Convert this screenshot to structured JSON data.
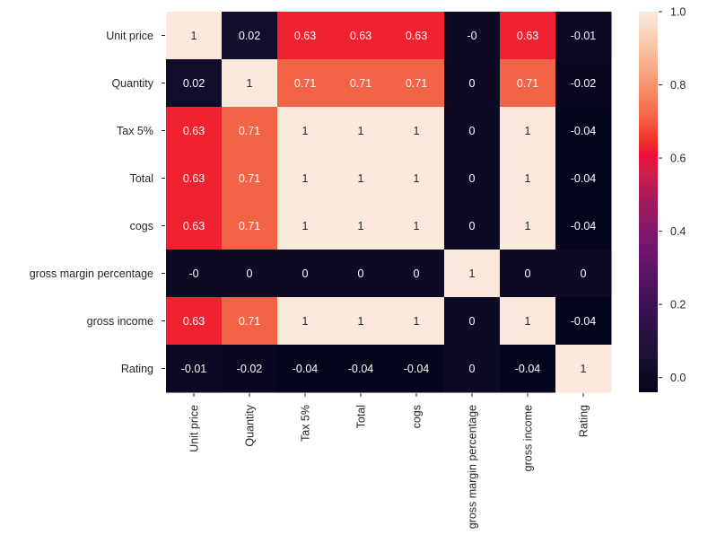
{
  "chart_data": {
    "type": "heatmap",
    "title": "",
    "xlabel": "",
    "ylabel": "",
    "row_labels": [
      "Unit price",
      "Quantity",
      "Tax 5%",
      "Total",
      "cogs",
      "gross margin percentage",
      "gross income",
      "Rating"
    ],
    "col_labels": [
      "Unit price",
      "Quantity",
      "Tax 5%",
      "Total",
      "cogs",
      "gross margin percentage",
      "gross income",
      "Rating"
    ],
    "values": [
      [
        1,
        0.02,
        0.63,
        0.63,
        0.63,
        -0.0,
        0.63,
        -0.01
      ],
      [
        0.02,
        1,
        0.71,
        0.71,
        0.71,
        0,
        0.71,
        -0.02
      ],
      [
        0.63,
        0.71,
        1,
        1,
        1,
        0,
        1,
        -0.04
      ],
      [
        0.63,
        0.71,
        1,
        1,
        1,
        0,
        1,
        -0.04
      ],
      [
        0.63,
        0.71,
        1,
        1,
        1,
        0,
        1,
        -0.04
      ],
      [
        -0.0,
        0,
        0,
        0,
        0,
        1,
        0,
        0
      ],
      [
        0.63,
        0.71,
        1,
        1,
        1,
        0,
        1,
        -0.04
      ],
      [
        -0.01,
        -0.02,
        -0.04,
        -0.04,
        -0.04,
        0,
        -0.04,
        1
      ]
    ],
    "annotations": [
      [
        "1",
        "0.02",
        "0.63",
        "0.63",
        "0.63",
        "-0",
        "0.63",
        "-0.01"
      ],
      [
        "0.02",
        "1",
        "0.71",
        "0.71",
        "0.71",
        "0",
        "0.71",
        "-0.02"
      ],
      [
        "0.63",
        "0.71",
        "1",
        "1",
        "1",
        "0",
        "1",
        "-0.04"
      ],
      [
        "0.63",
        "0.71",
        "1",
        "1",
        "1",
        "0",
        "1",
        "-0.04"
      ],
      [
        "0.63",
        "0.71",
        "1",
        "1",
        "1",
        "0",
        "1",
        "-0.04"
      ],
      [
        "-0",
        "0",
        "0",
        "0",
        "0",
        "1",
        "0",
        "0"
      ],
      [
        "0.63",
        "0.71",
        "1",
        "1",
        "1",
        "0",
        "1",
        "-0.04"
      ],
      [
        "-0.01",
        "-0.02",
        "-0.04",
        "-0.04",
        "-0.04",
        "0",
        "-0.04",
        "1"
      ]
    ],
    "colorbar": {
      "vmin": -0.04,
      "vmax": 1.0,
      "ticks": [
        0.0,
        0.2,
        0.4,
        0.6,
        0.8,
        1.0
      ],
      "tick_labels": [
        "0.0",
        "0.2",
        "0.4",
        "0.6",
        "0.8",
        "1.0"
      ],
      "colormap": "rocket",
      "placement": "right"
    },
    "colormap_stops": [
      {
        "t": 0.0,
        "color": "#03051a"
      },
      {
        "t": 0.1,
        "color": "#1c1135"
      },
      {
        "t": 0.2,
        "color": "#36114f"
      },
      {
        "t": 0.3,
        "color": "#561363"
      },
      {
        "t": 0.4,
        "color": "#79176e"
      },
      {
        "t": 0.5,
        "color": "#a11a5b"
      },
      {
        "t": 0.58,
        "color": "#d01f4a"
      },
      {
        "t": 0.62,
        "color": "#ef0d3a"
      },
      {
        "t": 0.66,
        "color": "#f0302a"
      },
      {
        "t": 0.73,
        "color": "#f46a4a"
      },
      {
        "t": 0.82,
        "color": "#f69a74"
      },
      {
        "t": 0.9,
        "color": "#f8c3a4"
      },
      {
        "t": 1.0,
        "color": "#fae9dc"
      }
    ],
    "grid": false
  }
}
